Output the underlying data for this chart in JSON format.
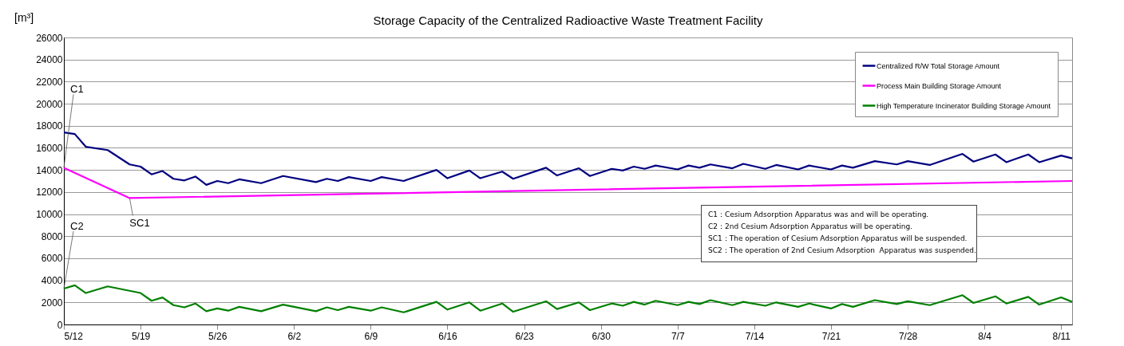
{
  "chart_data": {
    "type": "line",
    "title": "Storage Capacity of the Centralized Radioactive Waste Treatment Facility",
    "ylabel": "[m³]",
    "xlim": [
      "--05-12",
      "--08-12"
    ],
    "xticks": [
      {
        "value": "--05-12",
        "label": "5/12"
      },
      {
        "value": "--05-19",
        "label": "5/19"
      },
      {
        "value": "--05-26",
        "label": "5/26"
      },
      {
        "value": "--06-02",
        "label": "6/2"
      },
      {
        "value": "--06-09",
        "label": "6/9"
      },
      {
        "value": "--06-16",
        "label": "6/16"
      },
      {
        "value": "--06-23",
        "label": "6/23"
      },
      {
        "value": "--06-30",
        "label": "6/30"
      },
      {
        "value": "--07-07",
        "label": "7/7"
      },
      {
        "value": "--07-14",
        "label": "7/14"
      },
      {
        "value": "--07-21",
        "label": "7/21"
      },
      {
        "value": "--07-28",
        "label": "7/28"
      },
      {
        "value": "--08-04",
        "label": "8/4"
      },
      {
        "value": "--08-11",
        "label": "8/11"
      }
    ],
    "ylim": [
      0,
      26000
    ],
    "yticks": [
      0,
      2000,
      4000,
      6000,
      8000,
      10000,
      12000,
      14000,
      16000,
      18000,
      20000,
      22000,
      24000,
      26000
    ],
    "grid": "y",
    "legend": "top right",
    "marker": "none",
    "line_style": "solid",
    "series": [
      {
        "name": "Centralized R/W Total Storage Amount",
        "color": "#000080",
        "x": [
          "--05-12",
          "--05-13",
          "--05-14",
          "--05-16",
          "--05-18",
          "--05-19",
          "--05-20",
          "--05-21",
          "--05-22",
          "--05-23",
          "--05-24",
          "--05-25",
          "--05-26",
          "--05-27",
          "--05-28",
          "--05-30",
          "--06-01",
          "--06-04",
          "--06-05",
          "--06-06",
          "--06-07",
          "--06-09",
          "--06-10",
          "--06-12",
          "--06-15",
          "--06-16",
          "--06-18",
          "--06-19",
          "--06-21",
          "--06-22",
          "--06-25",
          "--06-26",
          "--06-28",
          "--06-29",
          "--07-01",
          "--07-02",
          "--07-03",
          "--07-04",
          "--07-05",
          "--07-07",
          "--07-08",
          "--07-09",
          "--07-10",
          "--07-12",
          "--07-13",
          "--07-15",
          "--07-16",
          "--07-18",
          "--07-19",
          "--07-21",
          "--07-22",
          "--07-23",
          "--07-25",
          "--07-27",
          "--07-28",
          "--07-30",
          "--08-02",
          "--08-03",
          "--08-05",
          "--08-06",
          "--08-08",
          "--08-09",
          "--08-11",
          "--08-12"
        ],
        "values": [
          17400,
          17250,
          16100,
          15800,
          14500,
          14300,
          13600,
          13900,
          13200,
          13050,
          13400,
          12650,
          13000,
          12800,
          13150,
          12800,
          13450,
          12900,
          13200,
          13000,
          13350,
          13000,
          13350,
          13000,
          14000,
          13250,
          13950,
          13250,
          13850,
          13200,
          14200,
          13500,
          14150,
          13450,
          14100,
          13950,
          14300,
          14100,
          14400,
          14050,
          14400,
          14200,
          14500,
          14150,
          14550,
          14100,
          14450,
          14050,
          14400,
          14050,
          14400,
          14200,
          14800,
          14500,
          14800,
          14450,
          15450,
          14750,
          15400,
          14700,
          15400,
          14700,
          15300,
          15050
        ]
      },
      {
        "name": "Process Main Building Storage Amount",
        "color": "#ff00ff",
        "x": [
          "--05-12",
          "--05-18",
          "--06-09",
          "--07-12",
          "--08-12"
        ],
        "values": [
          14200,
          11450,
          11850,
          12450,
          13000
        ]
      },
      {
        "name": "High Temperature Incinerator Building Storage Amount",
        "color": "#008000",
        "x": [
          "--05-12",
          "--05-13",
          "--05-14",
          "--05-16",
          "--05-19",
          "--05-20",
          "--05-21",
          "--05-22",
          "--05-23",
          "--05-24",
          "--05-25",
          "--05-26",
          "--05-27",
          "--05-28",
          "--05-30",
          "--06-01",
          "--06-04",
          "--06-05",
          "--06-06",
          "--06-07",
          "--06-09",
          "--06-10",
          "--06-12",
          "--06-15",
          "--06-16",
          "--06-18",
          "--06-19",
          "--06-21",
          "--06-22",
          "--06-25",
          "--06-26",
          "--06-28",
          "--06-29",
          "--07-01",
          "--07-02",
          "--07-03",
          "--07-04",
          "--07-05",
          "--07-07",
          "--07-08",
          "--07-09",
          "--07-10",
          "--07-12",
          "--07-13",
          "--07-15",
          "--07-16",
          "--07-18",
          "--07-19",
          "--07-21",
          "--07-22",
          "--07-23",
          "--07-25",
          "--07-27",
          "--07-28",
          "--07-30",
          "--08-02",
          "--08-03",
          "--08-05",
          "--08-06",
          "--08-08",
          "--08-09",
          "--08-11",
          "--08-12"
        ],
        "values": [
          3250,
          3550,
          2850,
          3450,
          2850,
          2150,
          2450,
          1750,
          1550,
          1900,
          1200,
          1450,
          1250,
          1600,
          1200,
          1800,
          1200,
          1550,
          1300,
          1600,
          1250,
          1550,
          1100,
          2050,
          1350,
          2000,
          1250,
          1900,
          1150,
          2100,
          1400,
          2000,
          1300,
          1900,
          1700,
          2050,
          1800,
          2150,
          1750,
          2050,
          1850,
          2200,
          1750,
          2050,
          1700,
          2000,
          1600,
          1900,
          1450,
          1850,
          1600,
          2200,
          1850,
          2100,
          1750,
          2650,
          1950,
          2550,
          1900,
          2500,
          1800,
          2450,
          2050
        ]
      }
    ],
    "annotations": [
      {
        "text": "C1",
        "x": "--05-12",
        "y": 14200
      },
      {
        "text": "C2",
        "x": "--05-12",
        "y": 3250
      },
      {
        "text": "SC1",
        "x": "--05-18",
        "y": 11450
      },
      "C1：Cesium Adsorption Apparatus was and will be operating.",
      "C2：2nd Cesium Adsorption Apparatus will be operating.",
      "SC1：The operation of Cesium Adsorption Apparatus will be suspended.",
      "SC2：The operation of 2nd Cesium Adsorption  Apparatus was suspended."
    ]
  }
}
